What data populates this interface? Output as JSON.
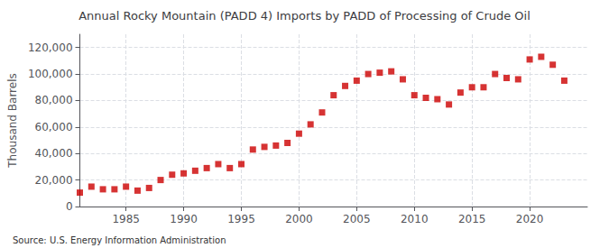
{
  "chart_data": {
    "type": "scatter",
    "title": "Annual Rocky Mountain (PADD 4) Imports by PADD of Processing of Crude Oil",
    "ylabel": "Thousand Barrels",
    "annotations": [
      "Source: U.S. Energy Information Administration"
    ],
    "color": "#cc0000",
    "marker": "square",
    "grid": true,
    "xlim": [
      1981,
      2025
    ],
    "ylim": [
      0,
      130000
    ],
    "xticks": [
      1985,
      1990,
      1995,
      2000,
      2005,
      2010,
      2015,
      2020
    ],
    "yticks": [
      0,
      {
        "value": 20000,
        "label": "20,000"
      },
      {
        "value": 40000,
        "label": "40,000"
      },
      {
        "value": 60000,
        "label": "60,000"
      },
      {
        "value": 80000,
        "label": "80,000"
      },
      {
        "value": 100000,
        "label": "100,000"
      },
      {
        "value": 120000,
        "label": "120,000"
      }
    ],
    "x": [
      1981,
      1982,
      1983,
      1984,
      1985,
      1986,
      1987,
      1988,
      1989,
      1990,
      1991,
      1992,
      1993,
      1994,
      1995,
      1996,
      1997,
      1998,
      1999,
      2000,
      2001,
      2002,
      2003,
      2004,
      2005,
      2006,
      2007,
      2008,
      2009,
      2010,
      2011,
      2012,
      2013,
      2014,
      2015,
      2016,
      2017,
      2018,
      2019,
      2020,
      2021,
      2022,
      2023
    ],
    "values": [
      10500,
      15000,
      13000,
      13000,
      15000,
      12000,
      14000,
      20000,
      24000,
      25000,
      27000,
      29000,
      32000,
      29000,
      32000,
      43000,
      45000,
      46000,
      48000,
      55000,
      62000,
      71000,
      84000,
      91000,
      95000,
      100000,
      101000,
      102000,
      96000,
      84000,
      82000,
      81000,
      77000,
      86000,
      90000,
      90000,
      100000,
      97000,
      96000,
      111000,
      113000,
      107000,
      95000
    ]
  }
}
